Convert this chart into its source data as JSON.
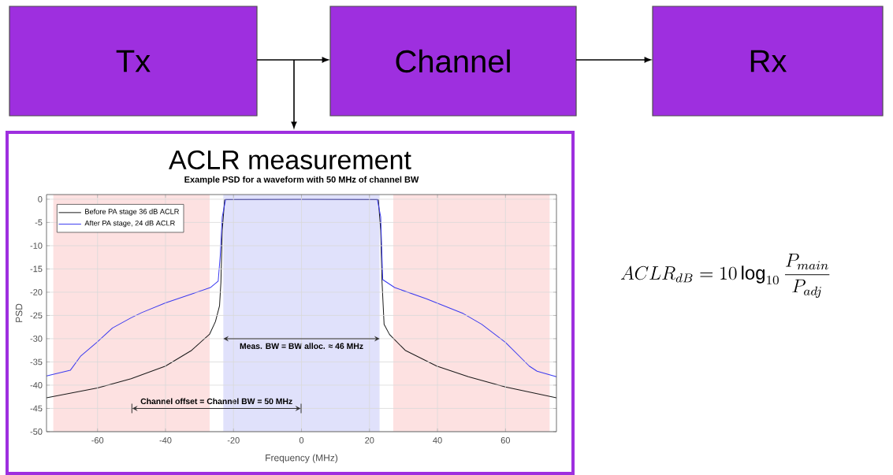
{
  "chart_data": [
    {
      "type": "other",
      "categories": [
        "Tx",
        "Channel",
        "Rx"
      ],
      "color": "#9e2fdf",
      "annotations": [
        "ACLR_{dB} = 10\\log_{10}\\frac{P_{main}}{P_{adj}}"
      ]
    },
    {
      "type": "line",
      "title": "ACLR measurement",
      "subtitle": "Example PSD for a waveform with 50 MHz of channel BW",
      "xlabel": "Frequency (MHz)",
      "ylabel": "PSD",
      "xlim": [
        -75,
        75
      ],
      "ylim": [
        -50,
        1
      ],
      "xticks": [
        -60,
        -40,
        -20,
        0,
        20,
        40,
        60
      ],
      "yticks": [
        -50,
        -45,
        -40,
        -35,
        -30,
        -25,
        -20,
        -15,
        -10,
        -5,
        0
      ],
      "grid": true,
      "legend": "top left",
      "series": [
        {
          "name": "Before PA stage 36 dB ACLR",
          "color": "#1a1a1a",
          "x": [
            -75,
            -60,
            -50.1,
            -40,
            -32.3,
            -27,
            -25.3,
            -24.1,
            -23.7,
            -23.3,
            -22.6,
            0,
            22.6,
            23.3,
            23.7,
            24.3,
            25.9,
            30.5,
            39.8,
            49.1,
            60,
            75
          ],
          "values": [
            -42.7,
            -40.6,
            -38.6,
            -35.9,
            -32.5,
            -29,
            -26.3,
            -22.9,
            -17.9,
            -6.6,
            -0.1,
            0,
            -0.1,
            -6.6,
            -17.9,
            -26.9,
            -29.1,
            -32.5,
            -35.9,
            -38.2,
            -40.4,
            -42.7
          ]
        },
        {
          "name": "After PA stage, 24 dB ACLR",
          "color": "#3a3af0",
          "x": [
            -75,
            -68,
            -64.9,
            -60.2,
            -55.6,
            -50.1,
            -47,
            -40,
            -32.3,
            -26.8,
            -24.5,
            -23.9,
            -23.3,
            -22.3,
            0,
            22.3,
            23.3,
            23.9,
            27.4,
            36.7,
            47.6,
            53,
            60,
            67,
            69.3,
            75
          ],
          "values": [
            -38,
            -36.8,
            -33.7,
            -30.8,
            -27.7,
            -25.5,
            -24.4,
            -22.3,
            -20.4,
            -19,
            -17.6,
            -12.2,
            -3.8,
            0,
            0,
            0,
            -3.8,
            -17.3,
            -19,
            -21.4,
            -24.6,
            -26.9,
            -30.8,
            -35.9,
            -37,
            -38.2
          ]
        }
      ],
      "bands": [
        {
          "axis": "x",
          "from": -73,
          "to": -27,
          "color": "#fde1e1"
        },
        {
          "axis": "x",
          "from": -23,
          "to": 23,
          "color": "#e0e1fb"
        },
        {
          "axis": "x",
          "from": 27,
          "to": 73,
          "color": "#fde1e1"
        }
      ],
      "annotations": [
        "Meas. BW = BW alloc.  ≈ 46 MHz",
        "Channel offset = Channel BW = 50 MHz"
      ]
    }
  ]
}
